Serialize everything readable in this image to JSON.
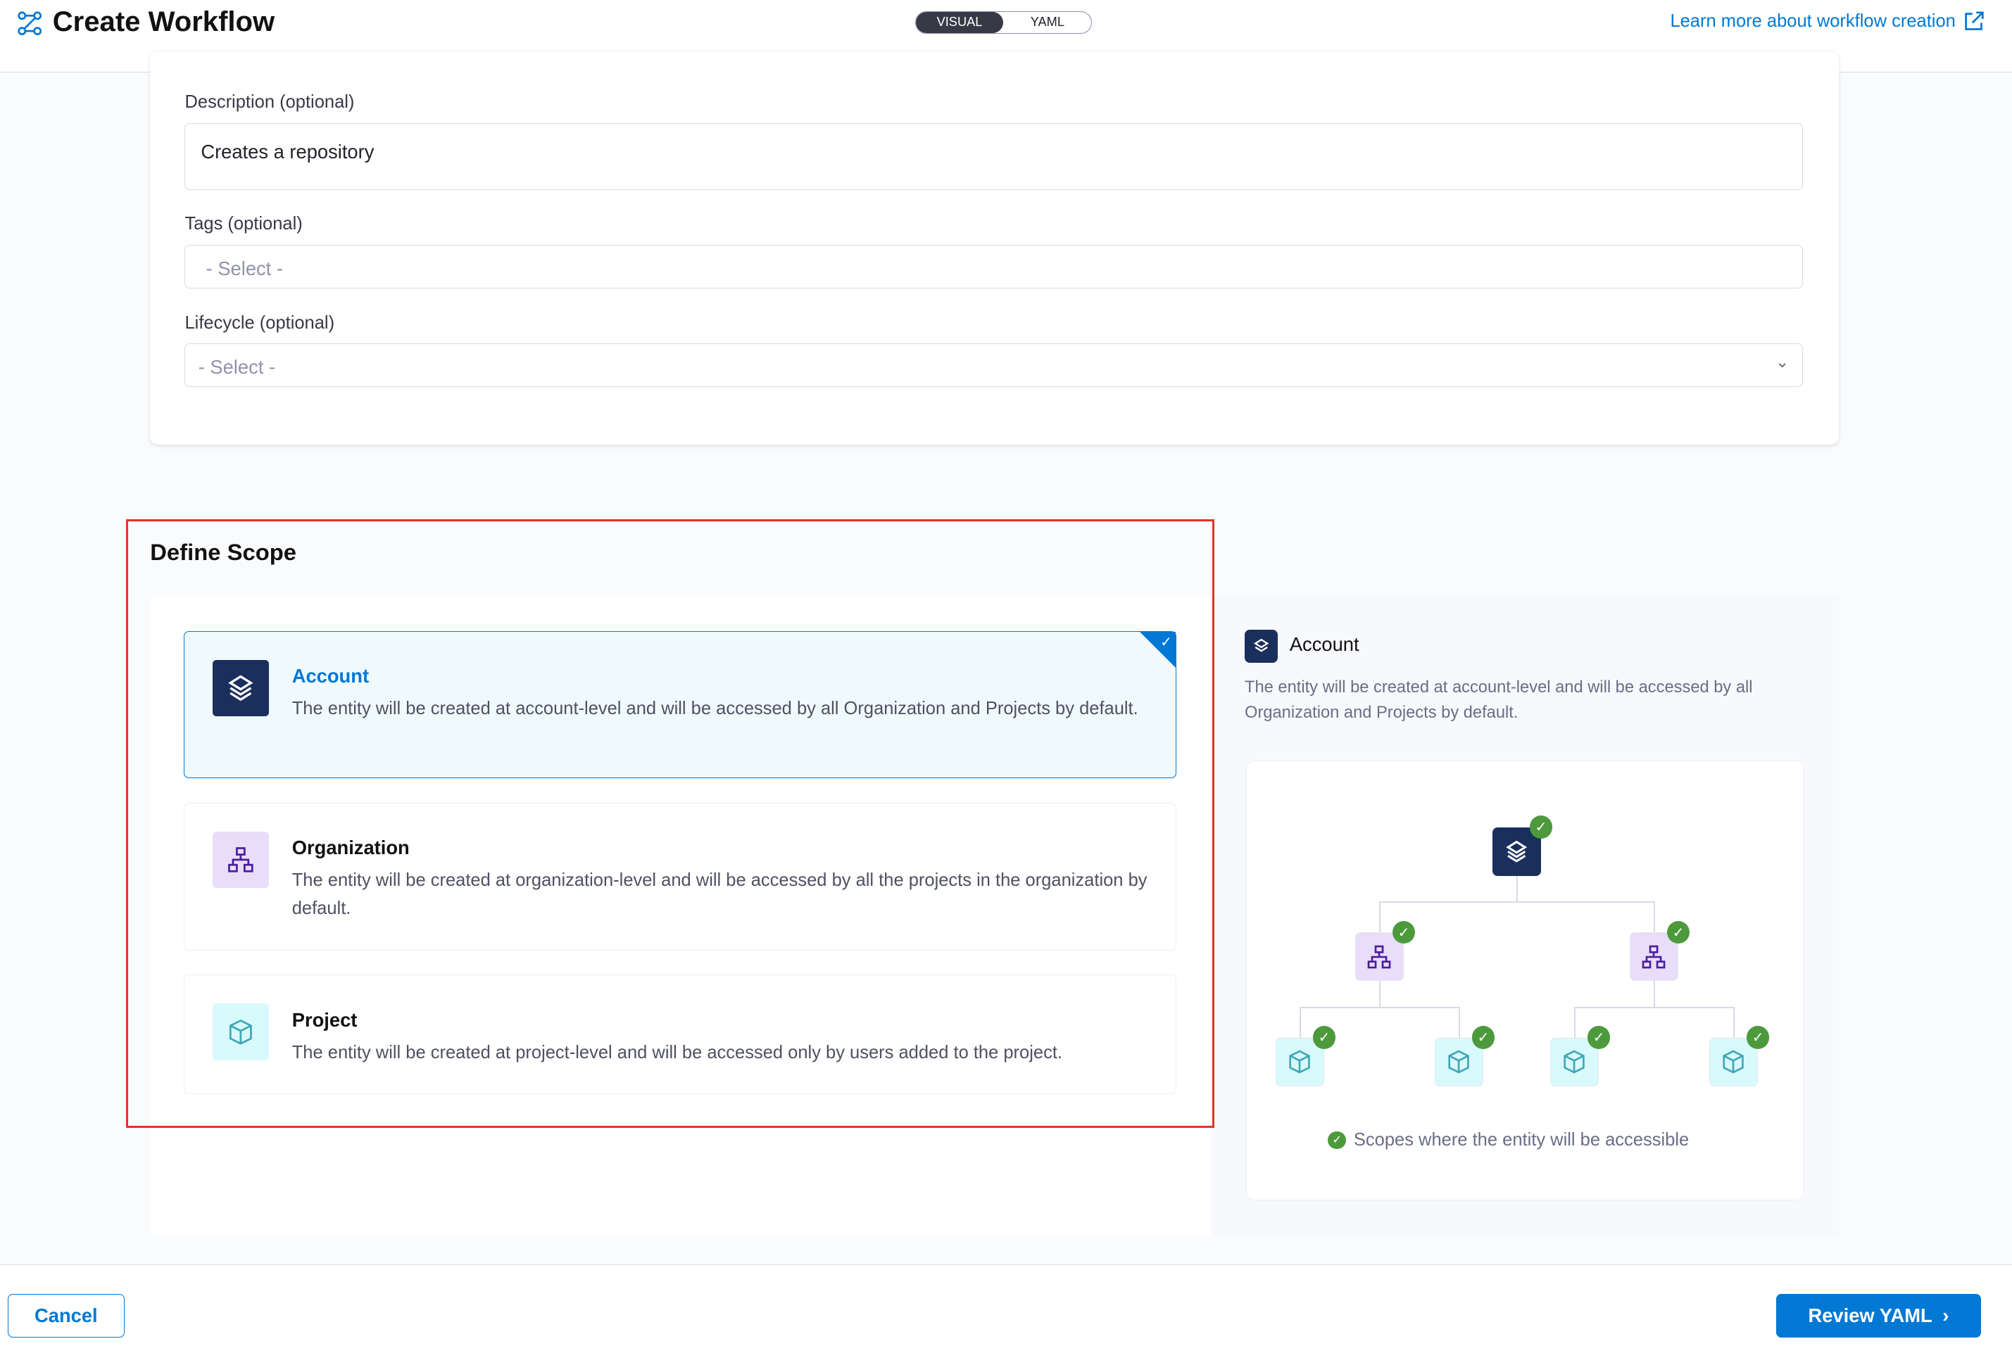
{
  "header": {
    "title": "Create Workflow",
    "toggle": {
      "visual": "VISUAL",
      "yaml": "YAML",
      "selected": "VISUAL"
    },
    "learn_more": "Learn more about workflow creation"
  },
  "form": {
    "description": {
      "label": "Description (optional)",
      "value": "Creates a repository"
    },
    "tags": {
      "label": "Tags (optional)",
      "placeholder": "- Select -"
    },
    "lifecycle": {
      "label": "Lifecycle (optional)",
      "placeholder": "- Select -"
    }
  },
  "scope": {
    "title": "Define Scope",
    "options": [
      {
        "name": "Account",
        "description": "The entity will be created at account-level and will be accessed by all Organization and Projects by default.",
        "selected": true
      },
      {
        "name": "Organization",
        "description": "The entity will be created at organization-level and will be accessed by all the projects in the organization by default.",
        "selected": false
      },
      {
        "name": "Project",
        "description": "The entity will be created at project-level and will be accessed only by users added to the project.",
        "selected": false
      }
    ],
    "preview": {
      "title": "Account",
      "description": "The entity will be created at account-level and will be accessed by all Organization and Projects by default.",
      "legend": "Scopes where the entity will be accessible"
    }
  },
  "footer": {
    "cancel": "Cancel",
    "review": "Review YAML"
  },
  "colors": {
    "accent": "#0278d5",
    "highlight": "#e43326",
    "account": "#1b2f5c",
    "org_bg": "#e9defa",
    "project_bg": "#d9fafd",
    "check": "#4d9a3d"
  }
}
